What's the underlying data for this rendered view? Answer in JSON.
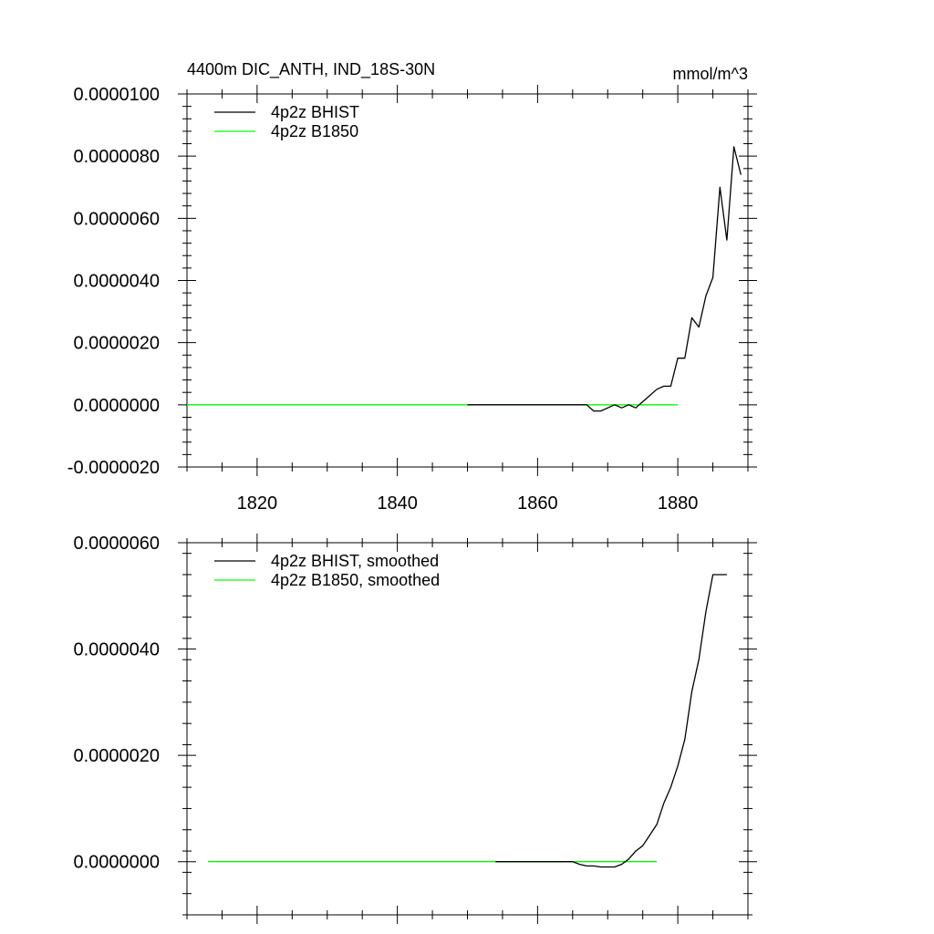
{
  "chart_data": [
    {
      "type": "line",
      "title": "4400m DIC_ANTH, IND_18S-30N",
      "units": "mmol/m^3",
      "xlabel": "",
      "ylabel": "",
      "xlim": [
        1810,
        1890
      ],
      "ylim": [
        -2e-06,
        1e-05
      ],
      "xticks": [
        1820,
        1840,
        1860,
        1880
      ],
      "xtick_labels": [
        "1820",
        "1840",
        "1860",
        "1880"
      ],
      "yticks": [
        -2e-06,
        0,
        2e-06,
        4e-06,
        6e-06,
        8e-06,
        1e-05
      ],
      "ytick_labels": [
        "-0.0000020",
        "0.0000000",
        "0.0000020",
        "0.0000040",
        "0.0000060",
        "0.0000080",
        "0.0000100"
      ],
      "legend_position": "top-left",
      "series": [
        {
          "name": "4p2z BHIST",
          "color": "#000000",
          "x": [
            1850,
            1851,
            1852,
            1853,
            1854,
            1855,
            1856,
            1857,
            1858,
            1859,
            1860,
            1861,
            1862,
            1863,
            1864,
            1865,
            1866,
            1867,
            1868,
            1869,
            1870,
            1871,
            1872,
            1873,
            1874,
            1875,
            1876,
            1877,
            1878,
            1879,
            1880,
            1881,
            1882,
            1883,
            1884,
            1885,
            1886,
            1887,
            1888,
            1889
          ],
          "y": [
            0,
            0,
            0,
            0,
            0,
            0,
            0,
            0,
            0,
            0,
            0,
            0,
            0,
            0,
            0,
            0,
            0,
            0,
            -2e-07,
            -2e-07,
            -1e-07,
            0,
            -1e-07,
            0,
            -1e-07,
            1e-07,
            3e-07,
            5e-07,
            6e-07,
            6e-07,
            1.5e-06,
            1.5e-06,
            2.8e-06,
            2.5e-06,
            3.5e-06,
            4.1e-06,
            7e-06,
            5.3e-06,
            8.3e-06,
            7.4e-06
          ]
        },
        {
          "name": "4p2z B1850",
          "color": "#00ff00",
          "x": [
            1810,
            1880
          ],
          "y": [
            0,
            0
          ]
        }
      ]
    },
    {
      "type": "line",
      "title": "",
      "xlabel": "",
      "ylabel": "",
      "xlim": [
        1810,
        1890
      ],
      "ylim": [
        -1e-06,
        6e-06
      ],
      "xticks": [
        1820,
        1840,
        1860,
        1880
      ],
      "xtick_labels": [],
      "yticks": [
        0,
        2e-06,
        4e-06,
        6e-06
      ],
      "ytick_labels": [
        "0.0000000",
        "0.0000020",
        "0.0000040",
        "0.0000060"
      ],
      "legend_position": "top-left",
      "series": [
        {
          "name": "4p2z BHIST, smoothed",
          "color": "#000000",
          "x": [
            1854,
            1856,
            1858,
            1860,
            1862,
            1864,
            1865,
            1866,
            1867,
            1868,
            1869,
            1870,
            1871,
            1872,
            1873,
            1874,
            1875,
            1876,
            1877,
            1878,
            1879,
            1880,
            1881,
            1882,
            1883,
            1884,
            1885,
            1886,
            1887
          ],
          "y": [
            0,
            0,
            0,
            0,
            0,
            0,
            0,
            -5e-08,
            -8e-08,
            -8e-08,
            -1e-07,
            -1e-07,
            -1e-07,
            -5e-08,
            5e-08,
            2e-07,
            3e-07,
            5e-07,
            7e-07,
            1.1e-06,
            1.4e-06,
            1.8e-06,
            2.3e-06,
            3.2e-06,
            3.8e-06,
            4.7e-06,
            5.4e-06,
            5.4e-06,
            5.4e-06
          ]
        },
        {
          "name": "4p2z B1850, smoothed",
          "color": "#00ff00",
          "x": [
            1813,
            1877
          ],
          "y": [
            0,
            0
          ]
        }
      ]
    }
  ]
}
